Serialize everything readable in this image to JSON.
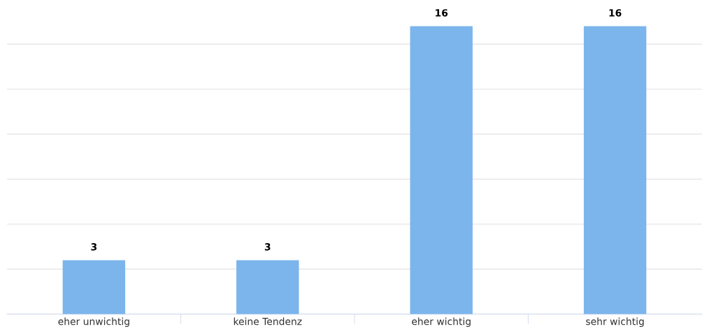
{
  "chart_data": {
    "type": "bar",
    "categories": [
      "eher unwichtig",
      "keine Tendenz",
      "eher wichtig",
      "sehr wichtig"
    ],
    "values": [
      3,
      3,
      16,
      16
    ],
    "color": "#7cb5ec",
    "data_labels": true,
    "grid": "y",
    "tick_labels": "x",
    "legend": false,
    "yticks": [
      {
        "value": 0,
        "label": null
      },
      {
        "value": 2.5,
        "label": null
      },
      {
        "value": 5,
        "label": null
      },
      {
        "value": 7.5,
        "label": null
      },
      {
        "value": 10,
        "label": null
      },
      {
        "value": 12.5,
        "label": null
      },
      {
        "value": 15,
        "label": null
      }
    ]
  }
}
